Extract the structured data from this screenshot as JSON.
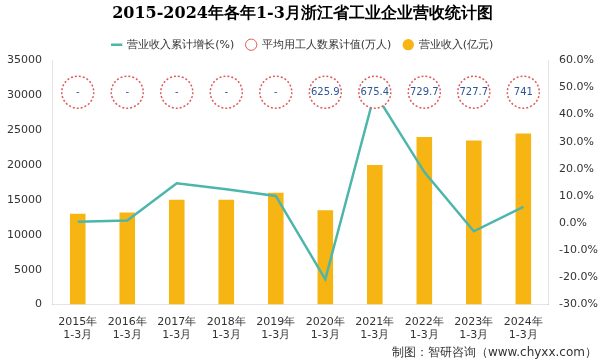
{
  "chart_data": {
    "type": "bar",
    "title": "2015-2024年各年1-3月浙江省工业企业营收统计图",
    "annotations": [
      "制图：智研咨询（www.chyxx.com）"
    ],
    "categories": [
      [
        "2015年",
        "1-3月"
      ],
      [
        "2016年",
        "1-3月"
      ],
      [
        "2017年",
        "1-3月"
      ],
      [
        "2018年",
        "1-3月"
      ],
      [
        "2019年",
        "1-3月"
      ],
      [
        "2020年",
        "1-3月"
      ],
      [
        "2021年",
        "1-3月"
      ],
      [
        "2022年",
        "1-3月"
      ],
      [
        "2023年",
        "1-3月"
      ],
      [
        "2024年",
        "1-3月"
      ]
    ],
    "series": [
      {
        "name": "营业收入(亿元)",
        "type": "bar",
        "color": "#f7b514",
        "values": [
          13000,
          13200,
          15000,
          15000,
          16000,
          13500,
          20000,
          24000,
          23500,
          24500
        ]
      },
      {
        "name": "平均用工人数累计值(万人)",
        "type": "scatter",
        "marker": "circle",
        "line_style": "dotted",
        "color": "#e05a5a",
        "values": [
          null,
          null,
          null,
          null,
          null,
          625.9,
          675.4,
          729.7,
          727.7,
          741
        ],
        "value_labels": [
          "-",
          "-",
          "-",
          "-",
          "-",
          "625.9",
          "675.4",
          "729.7",
          "727.7",
          "741"
        ]
      },
      {
        "name": "营业收入累计增长(%)",
        "type": "line",
        "color": "#4db6ac",
        "axis": "y2",
        "values": [
          0.5,
          1,
          14.7,
          12.5,
          10,
          -20.7,
          48,
          18.8,
          -3,
          6
        ]
      }
    ],
    "ylim": [
      0,
      35000
    ],
    "yticks": [
      0,
      5000,
      10000,
      15000,
      20000,
      25000,
      30000,
      35000
    ],
    "y2lim": [
      -30,
      60
    ],
    "y2ticks": [
      {
        "value": -30,
        "label": "-30.0%"
      },
      {
        "value": -20,
        "label": "-20.0%"
      },
      {
        "value": -10,
        "label": "-10.0%"
      },
      {
        "value": 0,
        "label": "0.0%"
      },
      {
        "value": 10,
        "label": "10.0%"
      },
      {
        "value": 20,
        "label": "20.0%"
      },
      {
        "value": 30,
        "label": "30.0%"
      },
      {
        "value": 40,
        "label": "40.0%"
      },
      {
        "value": 50,
        "label": "50.0%"
      },
      {
        "value": 60,
        "label": "60.0%"
      }
    ],
    "grid": false,
    "legend": "top"
  }
}
